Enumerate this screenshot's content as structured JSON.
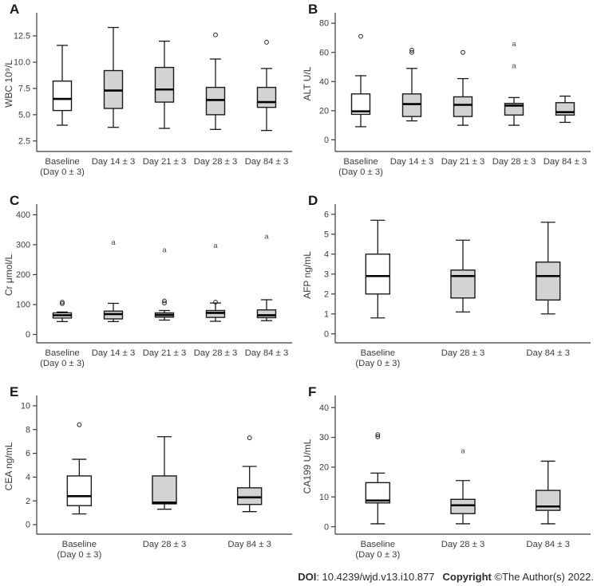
{
  "footer": {
    "doi_label": "DOI",
    "doi_value": ": 10.4239/wjd.v13.i10.877",
    "copyright_label": "Copyright",
    "copyright_value": "©The Author(s) 2022."
  },
  "colors": {
    "box_gray": "#d3d3d3",
    "box_white": "#ffffff",
    "stroke": "#1a1a1a",
    "axis": "#3c3c3c",
    "text": "#3c3c3c"
  },
  "chart_data": [
    {
      "type": "box",
      "panel": "A",
      "ylabel": "WBC 10⁹/L",
      "ylim": [
        1.5,
        14.4
      ],
      "yticks": [
        {
          "v": 2.5,
          "t": "2.5"
        },
        {
          "v": 5.0,
          "t": "5.0"
        },
        {
          "v": 7.5,
          "t": "7.5"
        },
        {
          "v": 10.0,
          "t": "10.0"
        },
        {
          "v": 12.5,
          "t": "12.5"
        }
      ],
      "categories": [
        [
          "Baseline",
          "(Day 0 ± 3)"
        ],
        [
          "Day 14 ± 3"
        ],
        [
          "Day 21 ± 3"
        ],
        [
          "Day 28 ± 3"
        ],
        [
          "Day 84 ± 3"
        ]
      ],
      "boxes": [
        {
          "low": 4.0,
          "q1": 5.4,
          "med": 6.5,
          "q3": 8.2,
          "high": 11.6,
          "fill": "white",
          "outliers": []
        },
        {
          "low": 3.8,
          "q1": 5.6,
          "med": 7.3,
          "q3": 9.2,
          "high": 13.3,
          "fill": "gray",
          "outliers": []
        },
        {
          "low": 3.7,
          "q1": 6.2,
          "med": 7.4,
          "q3": 9.5,
          "high": 12.0,
          "fill": "gray",
          "outliers": []
        },
        {
          "low": 3.6,
          "q1": 5.0,
          "med": 6.4,
          "q3": 7.6,
          "high": 10.3,
          "fill": "gray",
          "outliers": [
            {
              "v": 12.6,
              "m": "o"
            }
          ]
        },
        {
          "low": 3.5,
          "q1": 5.7,
          "med": 6.2,
          "q3": 7.6,
          "high": 9.4,
          "fill": "gray",
          "outliers": [
            {
              "v": 11.9,
              "m": "o"
            }
          ]
        }
      ]
    },
    {
      "type": "box",
      "panel": "B",
      "ylabel": "ALT U/L",
      "ylim": [
        -8,
        85
      ],
      "yticks": [
        {
          "v": 0,
          "t": "0"
        },
        {
          "v": 20,
          "t": "20"
        },
        {
          "v": 40,
          "t": "40"
        },
        {
          "v": 60,
          "t": "60"
        },
        {
          "v": 80,
          "t": "80"
        }
      ],
      "categories": [
        [
          "Baseline",
          "(Day 0 ± 3)"
        ],
        [
          "Day 14 ± 3"
        ],
        [
          "Day 21 ± 3"
        ],
        [
          "Day 28 ± 3"
        ],
        [
          "Day 84 ± 3"
        ]
      ],
      "boxes": [
        {
          "low": 9,
          "q1": 17.5,
          "med": 19.5,
          "q3": 31.5,
          "high": 44,
          "fill": "white",
          "outliers": [
            {
              "v": 71,
              "m": "o"
            }
          ]
        },
        {
          "low": 13,
          "q1": 16,
          "med": 24.5,
          "q3": 31.5,
          "high": 49,
          "fill": "gray",
          "outliers": [
            {
              "v": 60,
              "m": "o"
            },
            {
              "v": 61.5,
              "m": "o"
            }
          ]
        },
        {
          "low": 10,
          "q1": 16,
          "med": 24,
          "q3": 29.5,
          "high": 42,
          "fill": "gray",
          "outliers": [
            {
              "v": 60,
              "m": "o"
            }
          ]
        },
        {
          "low": 10,
          "q1": 17,
          "med": 23.5,
          "q3": 25,
          "high": 29,
          "fill": "gray",
          "outliers": [
            {
              "v": 51,
              "m": "a"
            },
            {
              "v": 66,
              "m": "a"
            }
          ]
        },
        {
          "low": 12,
          "q1": 17,
          "med": 19,
          "q3": 25.5,
          "high": 30,
          "fill": "gray",
          "outliers": []
        }
      ]
    },
    {
      "type": "box",
      "panel": "C",
      "ylabel": "Cr μmol/L",
      "ylim": [
        -28,
        425
      ],
      "yticks": [
        {
          "v": 0,
          "t": "0"
        },
        {
          "v": 100,
          "t": "100"
        },
        {
          "v": 200,
          "t": "200"
        },
        {
          "v": 300,
          "t": "300"
        },
        {
          "v": 400,
          "t": "400"
        }
      ],
      "categories": [
        [
          "Baseline",
          "(Day 0 ± 3)"
        ],
        [
          "Day 14 ± 3"
        ],
        [
          "Day 21 ± 3"
        ],
        [
          "Day 28 ± 3"
        ],
        [
          "Day 84 ± 3"
        ]
      ],
      "boxes": [
        {
          "low": 43,
          "q1": 55,
          "med": 64,
          "q3": 72,
          "high": 75,
          "fill": "white",
          "outliers": [
            {
              "v": 103,
              "m": "o"
            },
            {
              "v": 108,
              "m": "o"
            }
          ]
        },
        {
          "low": 43,
          "q1": 52,
          "med": 68,
          "q3": 78,
          "high": 104,
          "fill": "gray",
          "outliers": [
            {
              "v": 308,
              "m": "a"
            }
          ]
        },
        {
          "low": 48,
          "q1": 58,
          "med": 65,
          "q3": 72,
          "high": 80,
          "fill": "gray",
          "outliers": [
            {
              "v": 105,
              "m": "o"
            },
            {
              "v": 112,
              "m": "o"
            },
            {
              "v": 283,
              "m": "a"
            }
          ]
        },
        {
          "low": 44,
          "q1": 57,
          "med": 72,
          "q3": 80,
          "high": 105,
          "fill": "gray",
          "outliers": [
            {
              "v": 108,
              "m": "o"
            },
            {
              "v": 297,
              "m": "a"
            }
          ]
        },
        {
          "low": 46,
          "q1": 56,
          "med": 64,
          "q3": 82,
          "high": 116,
          "fill": "gray",
          "outliers": [
            {
              "v": 328,
              "m": "a"
            }
          ]
        }
      ]
    },
    {
      "type": "box",
      "panel": "D",
      "ylabel": "AFP ng/mL",
      "ylim": [
        -0.45,
        6.35
      ],
      "yticks": [
        {
          "v": 0,
          "t": "0"
        },
        {
          "v": 1,
          "t": "1"
        },
        {
          "v": 2,
          "t": "2"
        },
        {
          "v": 3,
          "t": "3"
        },
        {
          "v": 4,
          "t": "4"
        },
        {
          "v": 5,
          "t": "5"
        },
        {
          "v": 6,
          "t": "6"
        }
      ],
      "categories": [
        [
          "Baseline",
          "(Day 0 ± 3)"
        ],
        [
          "Day 28 ± 3"
        ],
        [
          "Day 84 ± 3"
        ]
      ],
      "boxes": [
        {
          "low": 0.8,
          "q1": 2.0,
          "med": 2.9,
          "q3": 4.0,
          "high": 5.7,
          "fill": "white",
          "outliers": []
        },
        {
          "low": 1.1,
          "q1": 1.8,
          "med": 2.9,
          "q3": 3.2,
          "high": 4.7,
          "fill": "gray",
          "outliers": []
        },
        {
          "low": 1.0,
          "q1": 1.7,
          "med": 2.9,
          "q3": 3.6,
          "high": 5.6,
          "fill": "gray",
          "outliers": []
        }
      ]
    },
    {
      "type": "box",
      "panel": "E",
      "ylabel": "CEA ng/mL",
      "ylim": [
        -0.8,
        10.6
      ],
      "yticks": [
        {
          "v": 0,
          "t": "0"
        },
        {
          "v": 2,
          "t": "2"
        },
        {
          "v": 4,
          "t": "4"
        },
        {
          "v": 6,
          "t": "6"
        },
        {
          "v": 8,
          "t": "8"
        },
        {
          "v": 10,
          "t": "10"
        }
      ],
      "categories": [
        [
          "Baseline",
          "(Day 0 ± 3)"
        ],
        [
          "Day 28 ± 3"
        ],
        [
          "Day 84 ± 3"
        ]
      ],
      "boxes": [
        {
          "low": 0.9,
          "q1": 1.6,
          "med": 2.4,
          "q3": 4.1,
          "high": 5.5,
          "fill": "white",
          "outliers": [
            {
              "v": 8.4,
              "m": "o"
            }
          ]
        },
        {
          "low": 1.3,
          "q1": 1.75,
          "med": 1.85,
          "q3": 4.1,
          "high": 7.4,
          "fill": "gray",
          "outliers": []
        },
        {
          "low": 1.1,
          "q1": 1.7,
          "med": 2.3,
          "q3": 3.1,
          "high": 4.9,
          "fill": "gray",
          "outliers": [
            {
              "v": 7.3,
              "m": "o"
            }
          ]
        }
      ]
    },
    {
      "type": "box",
      "panel": "F",
      "ylabel": "CA199 U/mL",
      "ylim": [
        -2.5,
        43
      ],
      "yticks": [
        {
          "v": 0,
          "t": "0"
        },
        {
          "v": 10,
          "t": "10"
        },
        {
          "v": 20,
          "t": "20"
        },
        {
          "v": 30,
          "t": "30"
        },
        {
          "v": 40,
          "t": "40"
        }
      ],
      "categories": [
        [
          "Baseline",
          "(Day 0 ± 3)"
        ],
        [
          "Day 28 ± 3"
        ],
        [
          "Day 84 ± 3"
        ]
      ],
      "boxes": [
        {
          "low": 1,
          "q1": 8,
          "med": 8.8,
          "q3": 14.8,
          "high": 18,
          "fill": "white",
          "outliers": [
            {
              "v": 30.2,
              "m": "o"
            },
            {
              "v": 30.9,
              "m": "o"
            }
          ]
        },
        {
          "low": 1,
          "q1": 4.4,
          "med": 7.2,
          "q3": 9.2,
          "high": 15.5,
          "fill": "gray",
          "outliers": [
            {
              "v": 25.5,
              "m": "a"
            }
          ]
        },
        {
          "low": 1,
          "q1": 5.5,
          "med": 6.8,
          "q3": 12.2,
          "high": 22,
          "fill": "gray",
          "outliers": []
        }
      ]
    }
  ]
}
